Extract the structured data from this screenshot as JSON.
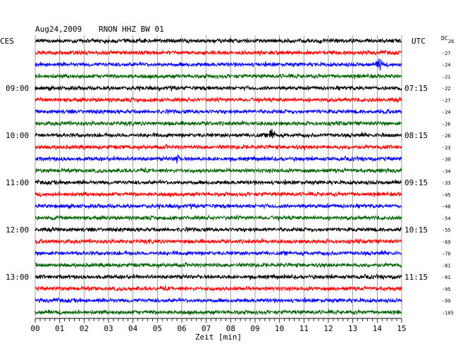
{
  "header": {
    "date": "Aug24,2009",
    "station": "RNON HHZ BW 01"
  },
  "left_zone": "CES",
  "right_zone": "UTC",
  "dc_label": "DC",
  "dc_first_value": "26",
  "colors": {
    "trace_cycle": [
      "#000000",
      "#ff0000",
      "#0000ff",
      "#006400"
    ],
    "grid": "#888888",
    "axis": "#000000",
    "text": "#000000",
    "background": "#ffffff"
  },
  "chart_data": {
    "type": "line",
    "title": "Aug24,2009  RNON HHZ BW 01",
    "xlabel": "Zeit [min]",
    "ylabel": "",
    "xlim": [
      0,
      15
    ],
    "x_ticks": [
      "00",
      "01",
      "02",
      "03",
      "04",
      "05",
      "06",
      "07",
      "08",
      "09",
      "10",
      "11",
      "12",
      "13",
      "14",
      "15"
    ],
    "trace_count": 24,
    "trace_interval_minutes": 15,
    "left_hour_labels": [
      {
        "trace": 4,
        "label": "09:00"
      },
      {
        "trace": 8,
        "label": "10:00"
      },
      {
        "trace": 12,
        "label": "11:00"
      },
      {
        "trace": 16,
        "label": "12:00"
      },
      {
        "trace": 20,
        "label": "13:00"
      }
    ],
    "right_hour_labels": [
      {
        "trace": 4,
        "label": "07:15"
      },
      {
        "trace": 8,
        "label": "08:15"
      },
      {
        "trace": 12,
        "label": "09:15"
      },
      {
        "trace": 16,
        "label": "10:15"
      },
      {
        "trace": 20,
        "label": "11:15"
      }
    ],
    "dc_offsets": [
      "-27",
      "-24",
      "-21",
      "-22",
      "-27",
      "-24",
      "-26",
      "-26",
      "-23",
      "-30",
      "-34",
      "-33",
      "-45",
      "-48",
      "-54",
      "-55",
      "-69",
      "-70",
      "-81",
      "-81",
      "-95",
      "-99",
      "-105"
    ],
    "events": [
      {
        "trace": 2,
        "minute": 14.1,
        "amplitude": "high"
      },
      {
        "trace": 8,
        "minute": 9.7,
        "amplitude": "high"
      },
      {
        "trace": 10,
        "minute": 5.8,
        "amplitude": "medium"
      }
    ]
  }
}
